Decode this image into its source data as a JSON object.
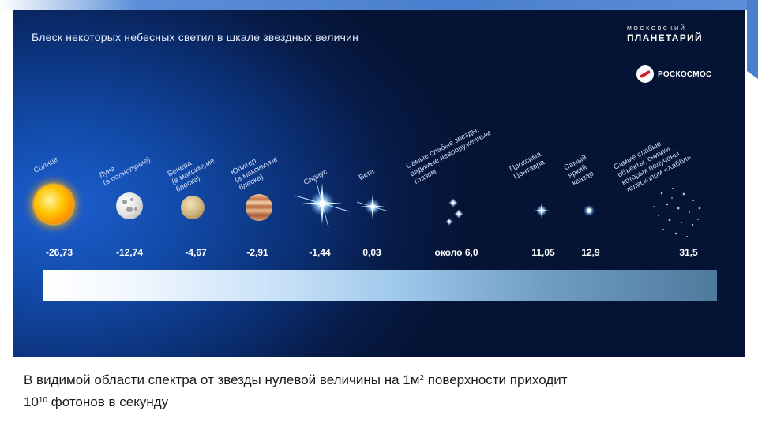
{
  "title": "Блеск некоторых небесных светил в шкале звездных величин",
  "logo": {
    "line1": "МОСКОВСКИЙ",
    "line2": "ПЛАНЕТАРИЙ",
    "partner": "РОСКОСМОС",
    "partner_icon": "roscosmos-emblem-icon"
  },
  "objects": [
    {
      "id": "sun",
      "label": [
        "Солнце"
      ],
      "magnitude": "-26,73"
    },
    {
      "id": "moon",
      "label": [
        "Луна",
        "(в полнолуние)"
      ],
      "magnitude": "-12,74"
    },
    {
      "id": "venus",
      "label": [
        "Венера",
        "(в максимуме",
        "блеска)"
      ],
      "magnitude": "-4,67"
    },
    {
      "id": "jupiter",
      "label": [
        "Юпитер",
        "(в максимуме",
        "блеска)"
      ],
      "magnitude": "-2,91"
    },
    {
      "id": "sirius",
      "label": [
        "Сириус"
      ],
      "magnitude": "-1,44"
    },
    {
      "id": "vega",
      "label": [
        "Вега"
      ],
      "magnitude": "0,03"
    },
    {
      "id": "faintest-naked-eye",
      "label": [
        "Самые слабые звезды,",
        "видимые невооруженным",
        "глазом"
      ],
      "magnitude": "около 6,0"
    },
    {
      "id": "proxima",
      "label": [
        "Проксима",
        "Центавра"
      ],
      "magnitude": "11,05"
    },
    {
      "id": "quasar",
      "label": [
        "Самый",
        "яркий",
        "квазар"
      ],
      "magnitude": "12,9"
    },
    {
      "id": "hubble",
      "label": [
        "Самые слабые",
        "объекты, снимки",
        "которых получены",
        "телескопом «Хаббл»"
      ],
      "magnitude": "31,5"
    }
  ],
  "caption": {
    "part1": "В видимой области спектра от звезды нулевой величины на 1м",
    "sup1": "2",
    "part2": " поверхности приходит",
    "part3": "10",
    "sup2": "10",
    "part4": " фотонов в секунду"
  }
}
